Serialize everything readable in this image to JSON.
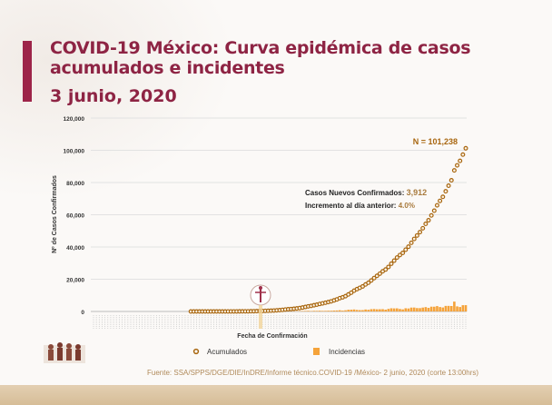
{
  "title": "COVID-19 México: Curva epidémica de casos acumulados e incidentes",
  "date": "3 junio, 2020",
  "source": "Fuente: SSA/SPPS/DGE/DIE/InDRE/Informe técnico.COVID-19 /México- 2 junio, 2020 (corte 13:00hrs)",
  "colors": {
    "title": "#8e2444",
    "acumulados": "#a8660f",
    "incidencias": "#f5a33a",
    "annotation_value": "#a87a3c"
  },
  "chart_data": {
    "type": "line",
    "xlabel": "Fecha de Confirmación",
    "ylabel": "Nº de Casos Confirmados",
    "ylim": [
      0,
      120000
    ],
    "yticks": [
      "0",
      "20,000",
      "40,000",
      "60,000",
      "80,000",
      "100,000",
      "120,000"
    ],
    "ytick_values": [
      0,
      20000,
      40000,
      60000,
      80000,
      100000,
      120000
    ],
    "grid": true,
    "legend_position": "bottom",
    "series": [
      {
        "name": "Acumulados",
        "marker": "circle-open",
        "values": [
          1,
          2,
          4,
          5,
          5,
          5,
          5,
          5,
          6,
          7,
          7,
          7,
          7,
          11,
          12,
          12,
          26,
          41,
          53,
          82,
          93,
          118,
          164,
          203,
          251,
          316,
          367,
          405,
          475,
          585,
          717,
          848,
          993,
          1215,
          1378,
          1510,
          1688,
          1890,
          2143,
          2439,
          2785,
          3181,
          3441,
          3844,
          4219,
          4661,
          5014,
          5399,
          5847,
          6297,
          6875,
          7497,
          8261,
          8772,
          9501,
          10544,
          11633,
          12872,
          13842,
          14677,
          15529,
          16752,
          17799,
          19224,
          20739,
          22088,
          23471,
          24905,
          26025,
          27634,
          29616,
          31522,
          33460,
          35022,
          36327,
          38324,
          40186,
          42595,
          45032,
          47144,
          49219,
          51633,
          54346,
          56594,
          59567,
          62527,
          65856,
          68620,
          71105,
          74560,
          78023,
          81400,
          87512,
          90664,
          93435,
          97326,
          101238
        ]
      },
      {
        "name": "Incidencias",
        "marker": "bar",
        "derived_from": "daily difference of Acumulados"
      }
    ],
    "annotations": {
      "total": "N = 101,238",
      "new_cases_label": "Casos Nuevos Confirmados:",
      "new_cases_value": "3,912",
      "increase_label": "Incremento al día anterior:",
      "increase_value": "4.0%"
    }
  }
}
